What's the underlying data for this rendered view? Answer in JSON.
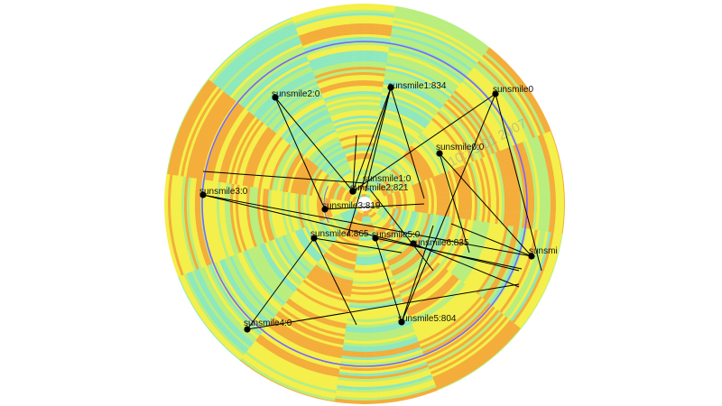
{
  "watermark": "10:25:01 2007",
  "colors": {
    "background": "#ffffff",
    "edge": "#000000",
    "node": "#000000",
    "guide_circle": "#7a63ff",
    "palette_cyan": "#8ee8bd",
    "palette_green": "#b9ee7e",
    "palette_yellow": "#f4ef4a",
    "palette_orange": "#f4ad3a"
  },
  "nodes": [
    {
      "id": "n1",
      "label": "sunsmile1:834"
    },
    {
      "id": "n2",
      "label": "sunsmile2:0"
    },
    {
      "id": "n3",
      "label": "sunsmile0"
    },
    {
      "id": "n4",
      "label": "sunsmile0:0"
    },
    {
      "id": "n5",
      "label": "sunsmile1:0"
    },
    {
      "id": "n6",
      "label": "sunsmile2:821"
    },
    {
      "id": "n7",
      "label": "sunsmile3:0"
    },
    {
      "id": "n8",
      "label": "sunsmile3:819"
    },
    {
      "id": "n9",
      "label": "sunsmile4:865"
    },
    {
      "id": "n10",
      "label": "sunsmile5:0"
    },
    {
      "id": "n11",
      "label": "sunsmile6:835"
    },
    {
      "id": "n12",
      "label": "sunsmi"
    },
    {
      "id": "n13",
      "label": "sunsmile4:0"
    },
    {
      "id": "n14",
      "label": "sunsmile5:804"
    }
  ]
}
